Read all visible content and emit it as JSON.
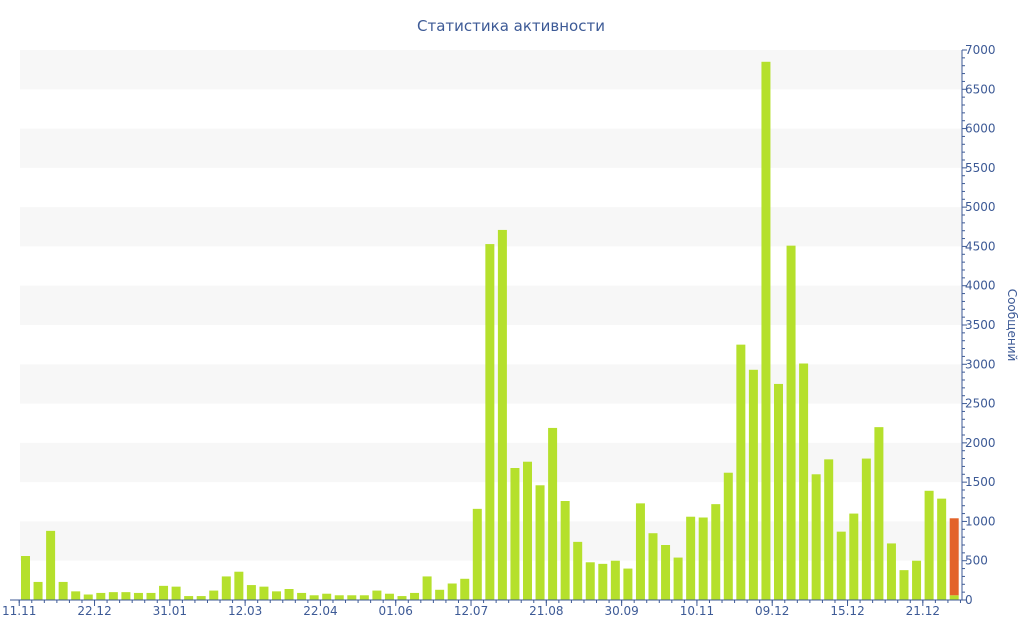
{
  "chart_data": {
    "type": "bar",
    "title": "Статистика активности",
    "ylabel": "Сообщений",
    "xlabel": "",
    "ylim": [
      0,
      7000
    ],
    "yticks": [
      0,
      500,
      1000,
      1500,
      2000,
      2500,
      3000,
      3500,
      4000,
      4500,
      5000,
      5500,
      6000,
      6500,
      7000
    ],
    "y_axis_position": "right",
    "grid": "alternating horizontal bands",
    "x_tick_labels": [
      {
        "index": 0,
        "label": "11.11"
      },
      {
        "index": 6,
        "label": "22.12"
      },
      {
        "index": 12,
        "label": "31.01"
      },
      {
        "index": 18,
        "label": "12.03"
      },
      {
        "index": 24,
        "label": "22.04"
      },
      {
        "index": 30,
        "label": "01.06"
      },
      {
        "index": 36,
        "label": "12.07"
      },
      {
        "index": 42,
        "label": "21.08"
      },
      {
        "index": 48,
        "label": "30.09"
      },
      {
        "index": 54,
        "label": "10.11"
      },
      {
        "index": 60,
        "label": "09.12"
      },
      {
        "index": 66,
        "label": "15.12"
      },
      {
        "index": 72,
        "label": "21.12"
      }
    ],
    "series": [
      {
        "color": "#b5e02c",
        "values": [
          560,
          230,
          880,
          230,
          110,
          70,
          90,
          100,
          100,
          90,
          90,
          180,
          170,
          50,
          50,
          120,
          300,
          360,
          190,
          170,
          110,
          140,
          90,
          60,
          80,
          60,
          60,
          60,
          120,
          80,
          50,
          90,
          300,
          130,
          210,
          270,
          1160,
          4530,
          4710,
          1680,
          1760,
          1460,
          2190,
          1260,
          740,
          480,
          460,
          500,
          400,
          1230,
          850,
          700,
          540,
          1060,
          1050,
          1220,
          1620,
          3250,
          2930,
          6850,
          2750,
          4510,
          3010,
          1600,
          1790,
          870,
          1100,
          1800,
          2200,
          720,
          380,
          500,
          1390,
          1290,
          60
        ]
      },
      {
        "color": "#e3632a",
        "values": [
          0,
          0,
          0,
          0,
          0,
          0,
          0,
          0,
          0,
          0,
          0,
          0,
          0,
          0,
          0,
          0,
          0,
          0,
          0,
          0,
          0,
          0,
          0,
          0,
          0,
          0,
          0,
          0,
          0,
          0,
          0,
          0,
          0,
          0,
          0,
          0,
          0,
          0,
          0,
          0,
          0,
          0,
          0,
          0,
          0,
          0,
          0,
          0,
          0,
          0,
          0,
          0,
          0,
          0,
          0,
          0,
          0,
          0,
          0,
          0,
          0,
          0,
          0,
          0,
          0,
          0,
          0,
          0,
          0,
          0,
          0,
          0,
          0,
          0,
          980
        ]
      }
    ]
  }
}
